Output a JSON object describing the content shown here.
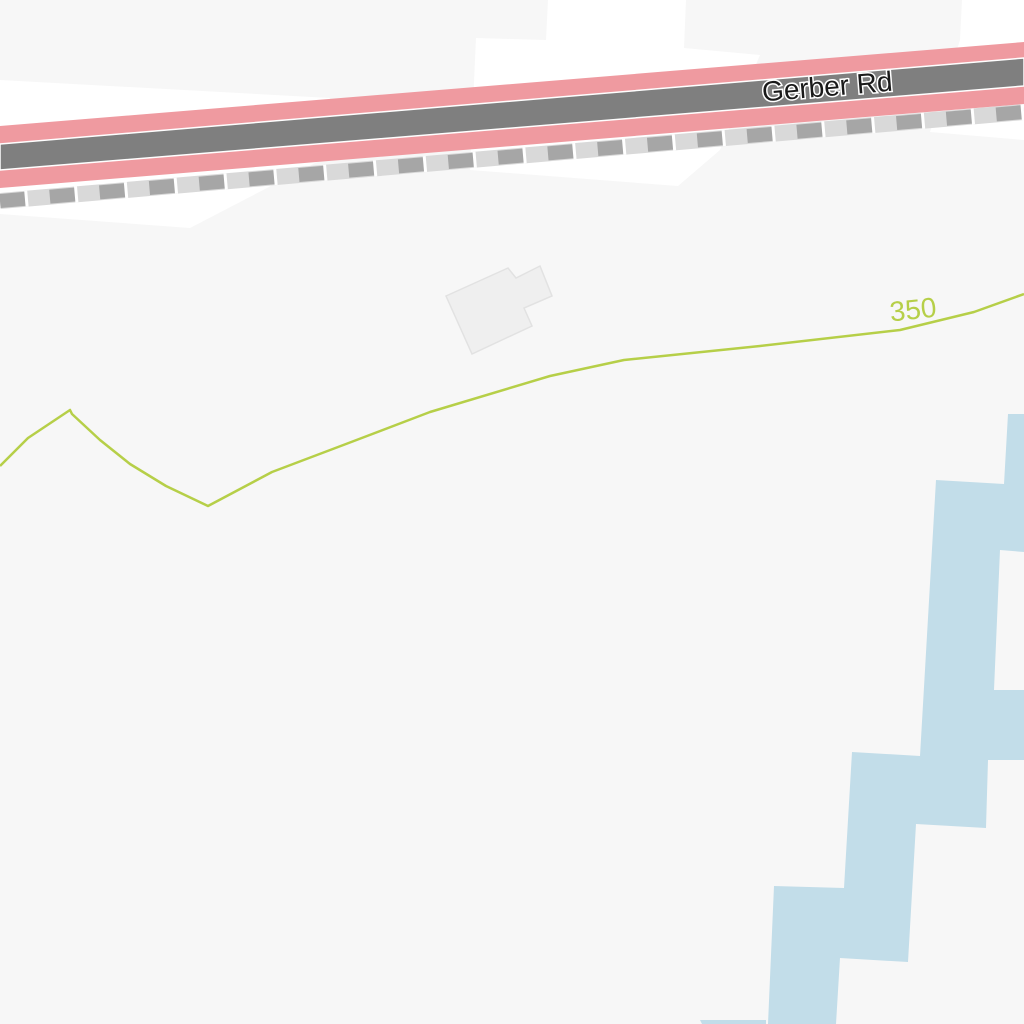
{
  "map": {
    "road": {
      "name": "Gerber Rd",
      "class": "primary",
      "casing_color": "#ef9aa0",
      "centerline_color": "#7f7f7f"
    },
    "railway": {
      "color_dark": "#a6a6a6",
      "color_light": "#d9d9d9"
    },
    "contour": {
      "elevation_label": "350",
      "color": "#b6cf48"
    },
    "water": {
      "color": "#c2dde9"
    },
    "building": {
      "fill": "#efefef",
      "stroke": "#e2e2e2"
    },
    "background_color": "#f7f7f7",
    "cleared_area_color": "#ffffff"
  }
}
